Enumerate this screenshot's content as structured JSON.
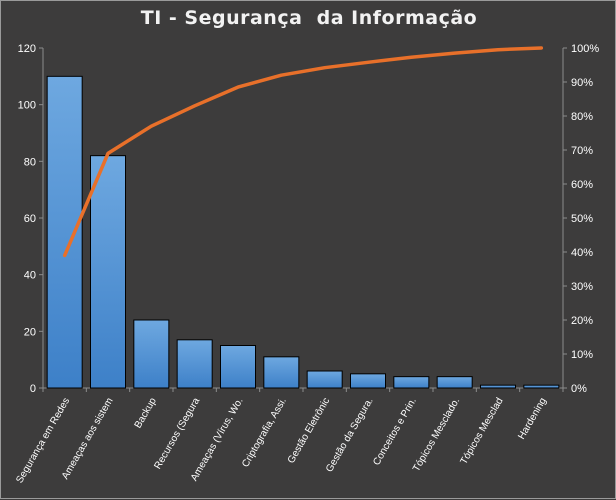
{
  "chart_data": {
    "type": "bar",
    "title": "TI - Segurança  da Informação",
    "categories": [
      "Segurança em Redes",
      "Ameaças aos sistem",
      "Backup",
      "Recursos (Segura",
      "Ameaças (Vírus, Wo.",
      "Criptografia, Assi.",
      "Gestão Eletrônic",
      "Gestão da Segura.",
      "Conceitos e Prin.",
      "Tópicos Mesclado.",
      "Tópicos Mesclad",
      "Hardening"
    ],
    "series": [
      {
        "type": "bar",
        "values": [
          110,
          82,
          24,
          17,
          15,
          11,
          6,
          5,
          4,
          4,
          1,
          1
        ]
      },
      {
        "type": "line",
        "axis": "right",
        "values": [
          0.39,
          0.69,
          0.77,
          0.83,
          0.885,
          0.92,
          0.942,
          0.958,
          0.973,
          0.985,
          0.995,
          1.0
        ]
      }
    ],
    "ylim": [
      0,
      120
    ],
    "yticks": [
      "0",
      "20",
      "40",
      "60",
      "80",
      "100",
      "120"
    ],
    "y2lim": [
      0,
      1
    ],
    "y2ticks": [
      "0%",
      "10%",
      "20%",
      "30%",
      "40%",
      "50%",
      "60%",
      "70%",
      "80%",
      "90%",
      "100%"
    ],
    "colors": {
      "bar": "#4a8fd4",
      "bar_outline": "#000000",
      "line": "#e8702a",
      "axis": "#8c8c8c"
    },
    "grid": false
  }
}
